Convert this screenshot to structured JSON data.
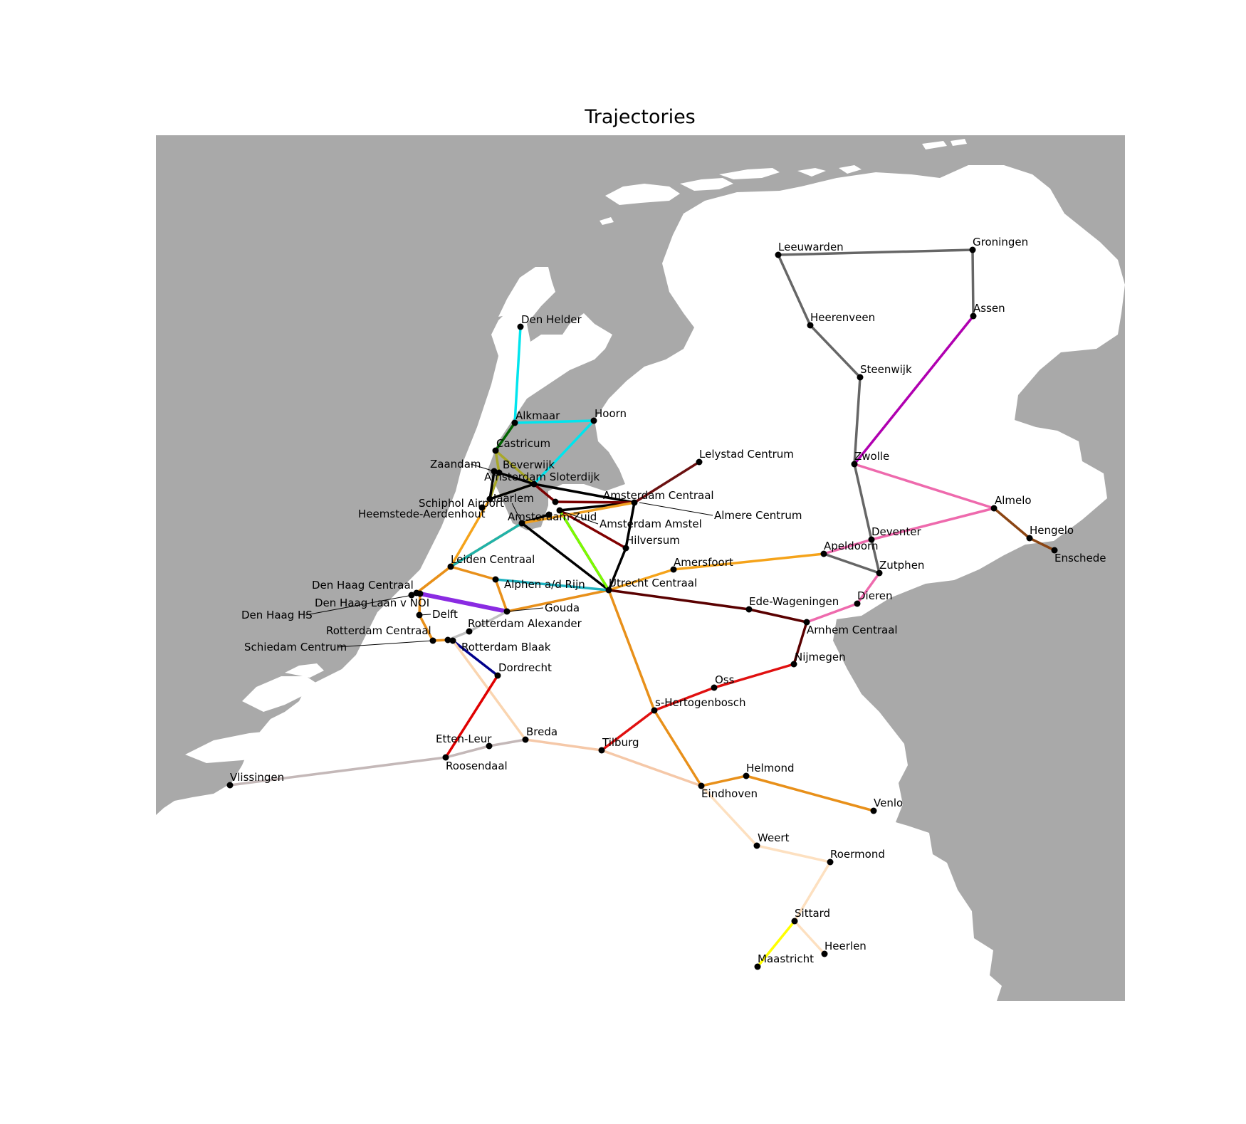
{
  "title": "Trajectories",
  "colors": {
    "sea": "#a9a9a9",
    "land": "#ffffff",
    "station": "#000000"
  },
  "stations": [
    {
      "name": "Den Helder"
    },
    {
      "name": "Alkmaar"
    },
    {
      "name": "Hoorn"
    },
    {
      "name": "Castricum"
    },
    {
      "name": "Beverwijk"
    },
    {
      "name": "Zaandam"
    },
    {
      "name": "Amsterdam Sloterdijk"
    },
    {
      "name": "Haarlem"
    },
    {
      "name": "Heemstede-Aerdenhout"
    },
    {
      "name": "Amsterdam Centraal"
    },
    {
      "name": "Almere Centrum"
    },
    {
      "name": "Amsterdam Amstel"
    },
    {
      "name": "Amsterdam Zuid"
    },
    {
      "name": "Schiphol Airport"
    },
    {
      "name": "Lelystad Centrum"
    },
    {
      "name": "Hilversum"
    },
    {
      "name": "Leiden Centraal"
    },
    {
      "name": "Amersfoort"
    },
    {
      "name": "Alphen a/d Rijn"
    },
    {
      "name": "Utrecht Centraal"
    },
    {
      "name": "Den Haag Centraal"
    },
    {
      "name": "Den Haag Laan v NOI"
    },
    {
      "name": "Den Haag HS"
    },
    {
      "name": "Delft"
    },
    {
      "name": "Gouda"
    },
    {
      "name": "Rotterdam Alexander"
    },
    {
      "name": "Rotterdam Centraal"
    },
    {
      "name": "Schiedam Centrum"
    },
    {
      "name": "Rotterdam Blaak"
    },
    {
      "name": "Dordrecht"
    },
    {
      "name": "Etten-Leur"
    },
    {
      "name": "Breda"
    },
    {
      "name": "Roosendaal"
    },
    {
      "name": "Vlissingen"
    },
    {
      "name": "Tilburg"
    },
    {
      "name": "s-Hertogenbosch"
    },
    {
      "name": "Oss"
    },
    {
      "name": "Nijmegen"
    },
    {
      "name": "Eindhoven"
    },
    {
      "name": "Helmond"
    },
    {
      "name": "Venlo"
    },
    {
      "name": "Weert"
    },
    {
      "name": "Roermond"
    },
    {
      "name": "Sittard"
    },
    {
      "name": "Heerlen"
    },
    {
      "name": "Maastricht"
    },
    {
      "name": "Ede-Wageningen"
    },
    {
      "name": "Arnhem Centraal"
    },
    {
      "name": "Dieren"
    },
    {
      "name": "Zutphen"
    },
    {
      "name": "Apeldoorn"
    },
    {
      "name": "Deventer"
    },
    {
      "name": "Zwolle"
    },
    {
      "name": "Almelo"
    },
    {
      "name": "Hengelo"
    },
    {
      "name": "Enschede"
    },
    {
      "name": "Steenwijk"
    },
    {
      "name": "Heerenveen"
    },
    {
      "name": "Leeuwarden"
    },
    {
      "name": "Groningen"
    },
    {
      "name": "Assen"
    }
  ],
  "trajectories": [
    {
      "stations": [
        "Den Helder",
        "Alkmaar",
        "Hoorn",
        "Amsterdam Sloterdijk"
      ],
      "color": "#00e5ee"
    },
    {
      "stations": [
        "Alkmaar",
        "Castricum"
      ],
      "color": "#006400"
    },
    {
      "stations": [
        "Castricum",
        "Beverwijk",
        "Haarlem",
        "Amsterdam Sloterdijk"
      ],
      "color": "#a8a82a"
    },
    {
      "stations": [
        "Castricum",
        "Amsterdam Sloterdijk"
      ],
      "color": "#a8a82a"
    },
    {
      "stations": [
        "Zaandam",
        "Haarlem",
        "Amsterdam Sloterdijk",
        "Zaandam"
      ],
      "color": "#000000"
    },
    {
      "stations": [
        "Amsterdam Sloterdijk",
        "Amsterdam Centraal",
        "Amsterdam Amstel",
        "Utrecht Centraal"
      ],
      "color": "#000000"
    },
    {
      "stations": [
        "Amsterdam Centraal",
        "Hilversum",
        "Utrecht Centraal",
        "Amsterdam Zuid",
        "Schiphol Airport"
      ],
      "color": "#000000"
    },
    {
      "stations": [
        "Amsterdam Centraal",
        "Lelystad Centrum"
      ],
      "color": "#6b1010"
    },
    {
      "stations": [
        "Amsterdam Centraal",
        "Almere Centrum",
        "Amsterdam Sloterdijk"
      ],
      "color": "#7a0000"
    },
    {
      "stations": [
        "Amsterdam Amstel",
        "Hilversum"
      ],
      "color": "#800000"
    },
    {
      "stations": [
        "Amsterdam Amstel",
        "Utrecht Centraal"
      ],
      "color": "#7cfc00"
    },
    {
      "stations": [
        "Haarlem",
        "Leiden Centraal",
        "Den Haag Centraal"
      ],
      "color": "#f5a31a"
    },
    {
      "stations": [
        "Amsterdam Centraal",
        "Amsterdam Zuid",
        "Leiden Centraal"
      ],
      "color": "#f0a020"
    },
    {
      "stations": [
        "Amsterdam Zuid",
        "Leiden Centraal"
      ],
      "color": "#20b2aa"
    },
    {
      "stations": [
        "Leiden Centraal",
        "Alphen a/d Rijn",
        "Gouda",
        "Utrecht Centraal"
      ],
      "color": "#e8901a"
    },
    {
      "stations": [
        "Alphen a/d Rijn",
        "Utrecht Centraal"
      ],
      "color": "#20b2c0"
    },
    {
      "stations": [
        "Den Haag Centraal",
        "Leiden Centraal"
      ],
      "color": "#e8901a"
    },
    {
      "stations": [
        "Den Haag Centraal",
        "Gouda"
      ],
      "color": "#8a2be2"
    },
    {
      "stations": [
        "Den Haag HS",
        "Delft",
        "Schiedam Centrum",
        "Rotterdam Centraal",
        "Rotterdam Blaak"
      ],
      "color": "#e8901a"
    },
    {
      "stations": [
        "Rotterdam Blaak",
        "Dordrecht"
      ],
      "color": "#00008b"
    },
    {
      "stations": [
        "Gouda",
        "Rotterdam Alexander",
        "Rotterdam Centraal"
      ],
      "color": "#c0c0c0"
    },
    {
      "stations": [
        "Rotterdam Blaak",
        "Breda"
      ],
      "color": "#fad5b0"
    },
    {
      "stations": [
        "Dordrecht",
        "Roosendaal"
      ],
      "color": "#e00000"
    },
    {
      "stations": [
        "Vlissingen",
        "Roosendaal",
        "Etten-Leur",
        "Breda"
      ],
      "color": "#c4b8b8"
    },
    {
      "stations": [
        "Breda",
        "Tilburg",
        "Eindhoven"
      ],
      "color": "#f5c8a8"
    },
    {
      "stations": [
        "Tilburg",
        "s-Hertogenbosch",
        "Oss",
        "Nijmegen"
      ],
      "color": "#e01010"
    },
    {
      "stations": [
        "Utrecht Centraal",
        "s-Hertogenbosch",
        "Eindhoven",
        "Helmond",
        "Venlo"
      ],
      "color": "#e8901a"
    },
    {
      "stations": [
        "Eindhoven",
        "Weert",
        "Roermond",
        "Sittard",
        "Heerlen"
      ],
      "color": "#fde0c0"
    },
    {
      "stations": [
        "Sittard",
        "Maastricht"
      ],
      "color": "#ffff00"
    },
    {
      "stations": [
        "Utrecht Centraal",
        "Amersfoort",
        "Apeldoorn"
      ],
      "color": "#f5a31a"
    },
    {
      "stations": [
        "Utrecht Centraal",
        "Ede-Wageningen",
        "Arnhem Centraal",
        "Nijmegen"
      ],
      "color": "#5a0000"
    },
    {
      "stations": [
        "Arnhem Centraal",
        "Dieren",
        "Zutphen"
      ],
      "color": "#ee6aad"
    },
    {
      "stations": [
        "Apeldoorn",
        "Deventer",
        "Almelo",
        "Zwolle"
      ],
      "color": "#ee6aad"
    },
    {
      "stations": [
        "Zutphen",
        "Apeldoorn"
      ],
      "color": "#666666"
    },
    {
      "stations": [
        "Zutphen",
        "Deventer",
        "Zwolle",
        "Steenwijk",
        "Heerenveen",
        "Leeuwarden",
        "Groningen",
        "Assen"
      ],
      "color": "#666666"
    },
    {
      "stations": [
        "Almelo",
        "Hengelo",
        "Enschede"
      ],
      "color": "#8b4513"
    },
    {
      "stations": [
        "Assen",
        "Zwolle"
      ],
      "color": "#b000b0"
    }
  ]
}
